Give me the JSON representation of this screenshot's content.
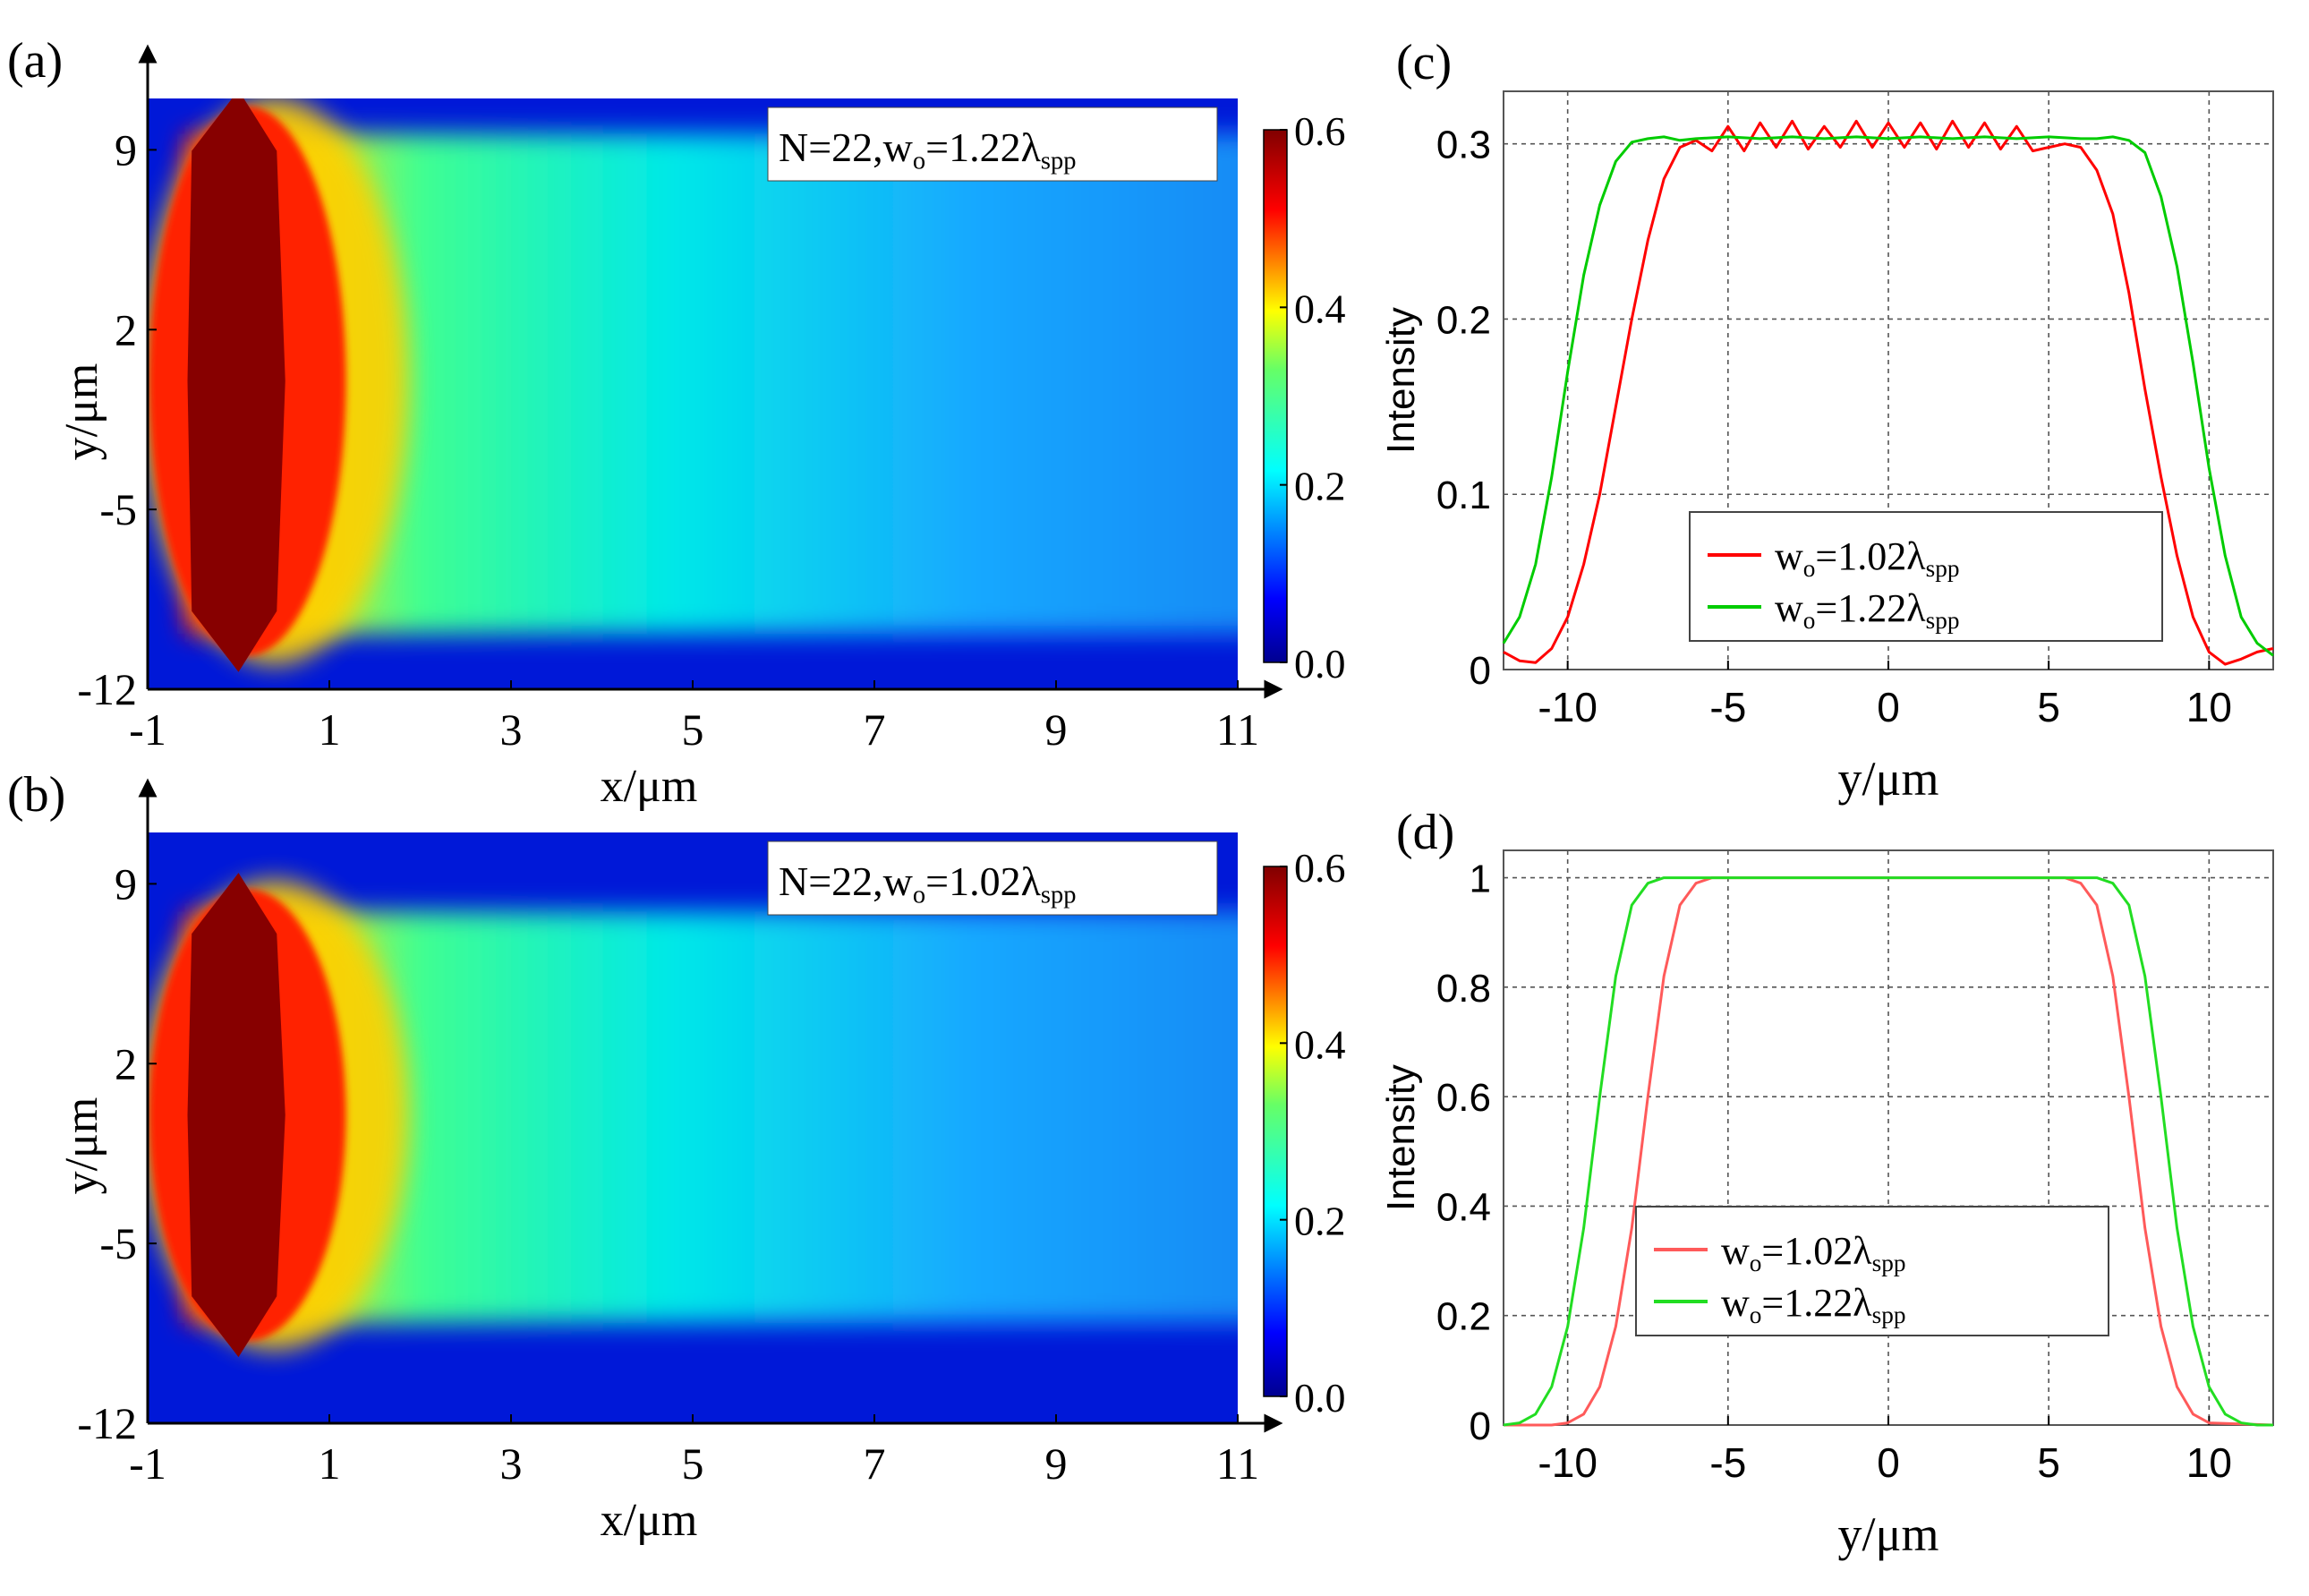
{
  "chart_data": [
    {
      "panel": "(a)",
      "type": "heatmap",
      "title": "",
      "annotation": {
        "base": "N=22,w",
        "sub": "o",
        "mid": "=1.22λ",
        "sub2": "spp"
      },
      "xlabel": "x/μm",
      "ylabel": "y/μm",
      "xticks": [
        "-1",
        "1",
        "3",
        "5",
        "7",
        "9",
        "11"
      ],
      "xtick_values": [
        -1,
        1,
        3,
        5,
        7,
        9,
        11
      ],
      "yticks": [
        "9",
        "2",
        "-5",
        "-12"
      ],
      "ytick_values": [
        9,
        2,
        -5,
        -12
      ],
      "xlim": [
        -1,
        11
      ],
      "ylim": [
        -12,
        11
      ],
      "source_half_width": 10.7,
      "colorbar": {
        "ticks": [
          "0.6",
          "0.4",
          "0.2",
          "0.0"
        ],
        "range": [
          0,
          0.6
        ]
      }
    },
    {
      "panel": "(b)",
      "type": "heatmap",
      "title": "",
      "annotation": {
        "base": "N=22,w",
        "sub": "o",
        "mid": "=1.02λ",
        "sub2": "spp"
      },
      "xlabel": "x/μm",
      "ylabel": "y/μm",
      "xticks": [
        "-1",
        "1",
        "3",
        "5",
        "7",
        "9",
        "11"
      ],
      "xtick_values": [
        -1,
        1,
        3,
        5,
        7,
        9,
        11
      ],
      "yticks": [
        "9",
        "2",
        "-5",
        "-12"
      ],
      "ytick_values": [
        9,
        2,
        -5,
        -12
      ],
      "xlim": [
        -1,
        11
      ],
      "ylim": [
        -12,
        11
      ],
      "source_half_width": 8.8,
      "colorbar": {
        "ticks": [
          "0.6",
          "0.4",
          "0.2",
          "0.0"
        ],
        "range": [
          0,
          0.6
        ]
      }
    },
    {
      "panel": "(c)",
      "type": "line",
      "xlabel": "y/μm",
      "ylabel": "Intensity",
      "xlim": [
        -12,
        12
      ],
      "ylim": [
        0,
        0.33
      ],
      "xticks": [
        "-10",
        "-5",
        "0",
        "5",
        "10"
      ],
      "xtick_values": [
        -10,
        -5,
        0,
        5,
        10
      ],
      "yticks": [
        "0",
        "0.1",
        "0.2",
        "0.3"
      ],
      "ytick_values": [
        0,
        0.1,
        0.2,
        0.3
      ],
      "grid": true,
      "legend_position": "center-bottom",
      "series": [
        {
          "name": "w",
          "name_sub": "o",
          "name_mid": "=1.02λ",
          "name_sub2": "spp",
          "color": "#ff0000",
          "x": [
            -12,
            -11.5,
            -11,
            -10.5,
            -10,
            -9.5,
            -9,
            -8.5,
            -8,
            -7.5,
            -7,
            -6.5,
            -6,
            -5.5,
            -5,
            -4.5,
            -4,
            -3.5,
            -3,
            -2.5,
            -2,
            -1.5,
            -1,
            -0.5,
            0,
            0.5,
            1,
            1.5,
            2,
            2.5,
            3,
            3.5,
            4,
            4.5,
            5,
            5.5,
            6,
            6.5,
            7,
            7.5,
            8,
            8.5,
            9,
            9.5,
            10,
            10.5,
            11,
            11.5,
            12
          ],
          "values": [
            0.01,
            0.005,
            0.004,
            0.012,
            0.03,
            0.06,
            0.1,
            0.15,
            0.2,
            0.245,
            0.28,
            0.298,
            0.302,
            0.296,
            0.31,
            0.296,
            0.312,
            0.298,
            0.313,
            0.297,
            0.31,
            0.298,
            0.313,
            0.298,
            0.312,
            0.298,
            0.312,
            0.297,
            0.313,
            0.298,
            0.312,
            0.297,
            0.31,
            0.296,
            0.298,
            0.3,
            0.298,
            0.285,
            0.26,
            0.215,
            0.16,
            0.11,
            0.065,
            0.03,
            0.01,
            0.003,
            0.006,
            0.01,
            0.012
          ]
        },
        {
          "name": "w",
          "name_sub": "o",
          "name_mid": "=1.22λ",
          "name_sub2": "spp",
          "color": "#00cc00",
          "x": [
            -12,
            -11.5,
            -11,
            -10.5,
            -10,
            -9.5,
            -9,
            -8.5,
            -8,
            -7.5,
            -7,
            -6.5,
            -6,
            -5,
            -4,
            -3,
            -2,
            -1,
            0,
            1,
            2,
            3,
            4,
            5,
            6,
            6.5,
            7,
            7.5,
            8,
            8.5,
            9,
            9.5,
            10,
            10.5,
            11,
            11.5,
            12
          ],
          "values": [
            0.015,
            0.03,
            0.06,
            0.11,
            0.17,
            0.225,
            0.265,
            0.29,
            0.301,
            0.303,
            0.304,
            0.302,
            0.303,
            0.304,
            0.303,
            0.304,
            0.303,
            0.304,
            0.303,
            0.304,
            0.303,
            0.304,
            0.303,
            0.304,
            0.303,
            0.303,
            0.304,
            0.302,
            0.295,
            0.27,
            0.23,
            0.175,
            0.115,
            0.065,
            0.03,
            0.015,
            0.008
          ]
        }
      ]
    },
    {
      "panel": "(d)",
      "type": "line",
      "xlabel": "y/μm",
      "ylabel": "Intensity",
      "xlim": [
        -12,
        12
      ],
      "ylim": [
        0,
        1.05
      ],
      "xticks": [
        "-10",
        "-5",
        "0",
        "5",
        "10"
      ],
      "xtick_values": [
        -10,
        -5,
        0,
        5,
        10
      ],
      "yticks": [
        "0",
        "0.2",
        "0.4",
        "0.6",
        "0.8",
        "1"
      ],
      "ytick_values": [
        0,
        0.2,
        0.4,
        0.6,
        0.8,
        1
      ],
      "grid": true,
      "legend_position": "center-bottom",
      "series": [
        {
          "name": "w",
          "name_sub": "o",
          "name_mid": "=1.02λ",
          "name_sub2": "spp",
          "color": "#ff5a5a",
          "x": [
            -12,
            -10.5,
            -10,
            -9.5,
            -9,
            -8.5,
            -8,
            -7.5,
            -7,
            -6.5,
            -6,
            -5.5,
            -5,
            0,
            5,
            5.5,
            6,
            6.5,
            7,
            7.5,
            8,
            8.5,
            9,
            9.5,
            10,
            12
          ],
          "values": [
            0,
            0,
            0.004,
            0.02,
            0.07,
            0.18,
            0.36,
            0.6,
            0.82,
            0.95,
            0.99,
            1,
            1,
            1,
            1,
            1,
            0.99,
            0.95,
            0.82,
            0.6,
            0.36,
            0.18,
            0.07,
            0.02,
            0.004,
            0
          ]
        },
        {
          "name": "w",
          "name_sub": "o",
          "name_mid": "=1.22λ",
          "name_sub2": "spp",
          "color": "#22dd22",
          "x": [
            -12,
            -11.5,
            -11,
            -10.5,
            -10,
            -9.5,
            -9,
            -8.5,
            -8,
            -7.5,
            -7,
            -6.5,
            -6,
            0,
            6,
            6.5,
            7,
            7.5,
            8,
            8.5,
            9,
            9.5,
            10,
            10.5,
            11,
            11.5,
            12
          ],
          "values": [
            0,
            0.004,
            0.02,
            0.07,
            0.18,
            0.36,
            0.6,
            0.82,
            0.95,
            0.99,
            1,
            1,
            1,
            1,
            1,
            1,
            0.99,
            0.95,
            0.82,
            0.6,
            0.36,
            0.18,
            0.07,
            0.02,
            0.004,
            0,
            0
          ]
        }
      ]
    }
  ]
}
